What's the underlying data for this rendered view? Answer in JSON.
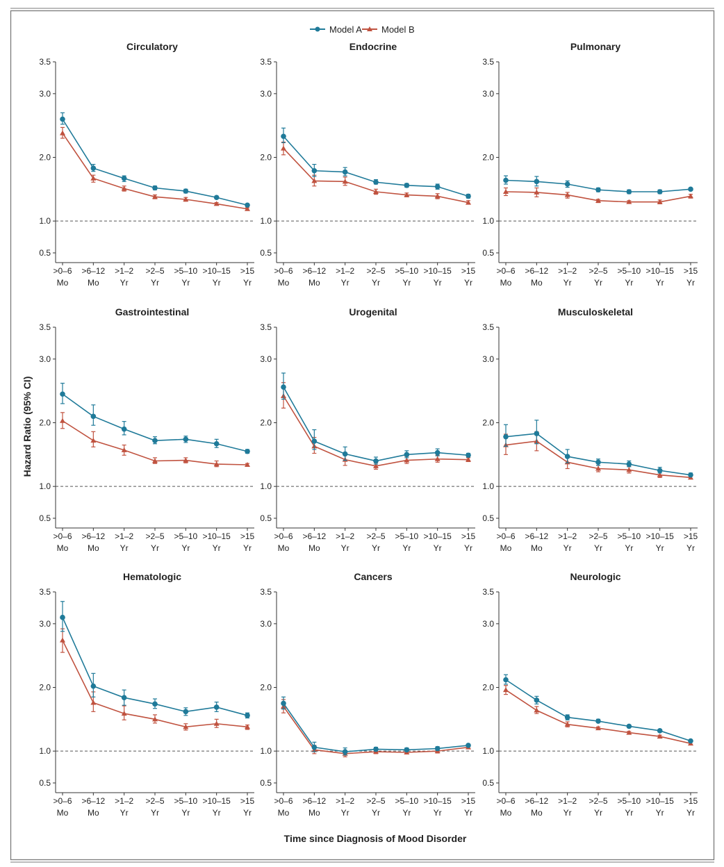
{
  "legend": [
    {
      "name": "Model A",
      "color": "#1f7a99",
      "marker": "circle"
    },
    {
      "name": "Model B",
      "color": "#c0523f",
      "marker": "triangle"
    }
  ],
  "xlabel": "Time since Diagnosis of Mood Disorder",
  "ylabel": "Hazard Ratio (95% CI)",
  "x_ticks": [
    [
      ">0–6",
      "Mo"
    ],
    [
      ">6–12",
      "Mo"
    ],
    [
      ">1–2",
      "Yr"
    ],
    [
      ">2–5",
      "Yr"
    ],
    [
      ">5–10",
      "Yr"
    ],
    [
      ">10–15",
      "Yr"
    ],
    [
      ">15",
      "Yr"
    ]
  ],
  "y_ticks": [
    "0.5",
    "1.0",
    "2.0",
    "3.0",
    "3.5"
  ],
  "chart_data": [
    {
      "type": "line",
      "title": "Circulatory",
      "ylim": [
        0.5,
        3.5
      ],
      "series": [
        {
          "name": "Model A",
          "values": [
            2.6,
            1.83,
            1.67,
            1.52,
            1.47,
            1.37,
            1.25
          ],
          "ci": [
            [
              2.52,
              2.7
            ],
            [
              1.78,
              1.89
            ],
            [
              1.62,
              1.71
            ],
            [
              1.49,
              1.55
            ],
            [
              1.44,
              1.5
            ],
            [
              1.35,
              1.39
            ],
            [
              1.23,
              1.27
            ]
          ]
        },
        {
          "name": "Model B",
          "values": [
            2.38,
            1.67,
            1.51,
            1.38,
            1.34,
            1.27,
            1.19
          ],
          "ci": [
            [
              2.3,
              2.47
            ],
            [
              1.61,
              1.72
            ],
            [
              1.47,
              1.55
            ],
            [
              1.35,
              1.41
            ],
            [
              1.31,
              1.37
            ],
            [
              1.25,
              1.29
            ],
            [
              1.17,
              1.21
            ]
          ]
        }
      ]
    },
    {
      "type": "line",
      "title": "Endocrine",
      "ylim": [
        0.5,
        3.5
      ],
      "series": [
        {
          "name": "Model A",
          "values": [
            2.33,
            1.79,
            1.77,
            1.61,
            1.56,
            1.54,
            1.39
          ],
          "ci": [
            [
              2.23,
              2.46
            ],
            [
              1.7,
              1.89
            ],
            [
              1.71,
              1.84
            ],
            [
              1.58,
              1.65
            ],
            [
              1.53,
              1.59
            ],
            [
              1.5,
              1.58
            ],
            [
              1.36,
              1.42
            ]
          ]
        },
        {
          "name": "Model B",
          "values": [
            2.14,
            1.63,
            1.62,
            1.46,
            1.41,
            1.39,
            1.29
          ],
          "ci": [
            [
              2.04,
              2.24
            ],
            [
              1.55,
              1.72
            ],
            [
              1.56,
              1.69
            ],
            [
              1.42,
              1.5
            ],
            [
              1.38,
              1.44
            ],
            [
              1.35,
              1.43
            ],
            [
              1.27,
              1.32
            ]
          ]
        }
      ]
    },
    {
      "type": "line",
      "title": "Pulmonary",
      "ylim": [
        0.5,
        3.5
      ],
      "series": [
        {
          "name": "Model A",
          "values": [
            1.64,
            1.62,
            1.58,
            1.49,
            1.46,
            1.46,
            1.5
          ],
          "ci": [
            [
              1.58,
              1.71
            ],
            [
              1.55,
              1.7
            ],
            [
              1.53,
              1.63
            ],
            [
              1.46,
              1.52
            ],
            [
              1.43,
              1.49
            ],
            [
              1.43,
              1.49
            ],
            [
              1.48,
              1.52
            ]
          ]
        },
        {
          "name": "Model B",
          "values": [
            1.46,
            1.45,
            1.41,
            1.32,
            1.3,
            1.3,
            1.39
          ],
          "ci": [
            [
              1.4,
              1.52
            ],
            [
              1.38,
              1.52
            ],
            [
              1.36,
              1.45
            ],
            [
              1.29,
              1.34
            ],
            [
              1.28,
              1.32
            ],
            [
              1.27,
              1.33
            ],
            [
              1.36,
              1.42
            ]
          ]
        }
      ]
    },
    {
      "type": "line",
      "title": "Gastrointestinal",
      "ylim": [
        0.5,
        3.5
      ],
      "series": [
        {
          "name": "Model A",
          "values": [
            2.45,
            2.1,
            1.9,
            1.72,
            1.74,
            1.67,
            1.55
          ],
          "ci": [
            [
              2.3,
              2.62
            ],
            [
              1.96,
              2.28
            ],
            [
              1.81,
              2.02
            ],
            [
              1.67,
              1.78
            ],
            [
              1.69,
              1.79
            ],
            [
              1.61,
              1.74
            ],
            [
              1.52,
              1.58
            ]
          ]
        },
        {
          "name": "Model B",
          "values": [
            2.03,
            1.72,
            1.57,
            1.4,
            1.41,
            1.35,
            1.34
          ],
          "ci": [
            [
              1.91,
              2.16
            ],
            [
              1.62,
              1.86
            ],
            [
              1.49,
              1.65
            ],
            [
              1.36,
              1.45
            ],
            [
              1.37,
              1.45
            ],
            [
              1.31,
              1.4
            ],
            [
              1.32,
              1.36
            ]
          ]
        }
      ]
    },
    {
      "type": "line",
      "title": "Urogenital",
      "ylim": [
        0.5,
        3.5
      ],
      "series": [
        {
          "name": "Model A",
          "values": [
            2.56,
            1.71,
            1.51,
            1.4,
            1.5,
            1.53,
            1.49
          ],
          "ci": [
            [
              2.37,
              2.78
            ],
            [
              1.58,
              1.89
            ],
            [
              1.41,
              1.62
            ],
            [
              1.35,
              1.46
            ],
            [
              1.45,
              1.56
            ],
            [
              1.48,
              1.59
            ],
            [
              1.46,
              1.52
            ]
          ]
        },
        {
          "name": "Model B",
          "values": [
            2.42,
            1.63,
            1.42,
            1.32,
            1.41,
            1.43,
            1.42
          ],
          "ci": [
            [
              2.23,
              2.63
            ],
            [
              1.52,
              1.77
            ],
            [
              1.33,
              1.52
            ],
            [
              1.27,
              1.37
            ],
            [
              1.36,
              1.47
            ],
            [
              1.38,
              1.49
            ],
            [
              1.39,
              1.45
            ]
          ]
        }
      ]
    },
    {
      "type": "line",
      "title": "Musculoskeletal",
      "ylim": [
        0.5,
        3.5
      ],
      "series": [
        {
          "name": "Model A",
          "values": [
            1.78,
            1.83,
            1.47,
            1.38,
            1.35,
            1.25,
            1.18
          ],
          "ci": [
            [
              1.63,
              1.97
            ],
            [
              1.67,
              2.04
            ],
            [
              1.37,
              1.58
            ],
            [
              1.33,
              1.43
            ],
            [
              1.31,
              1.4
            ],
            [
              1.21,
              1.3
            ],
            [
              1.16,
              1.21
            ]
          ]
        },
        {
          "name": "Model B",
          "values": [
            1.65,
            1.71,
            1.38,
            1.28,
            1.26,
            1.18,
            1.14
          ],
          "ci": [
            [
              1.5,
              1.82
            ],
            [
              1.56,
              1.86
            ],
            [
              1.28,
              1.49
            ],
            [
              1.23,
              1.33
            ],
            [
              1.21,
              1.31
            ],
            [
              1.14,
              1.23
            ],
            [
              1.12,
              1.17
            ]
          ]
        }
      ]
    },
    {
      "type": "line",
      "title": "Hematologic",
      "ylim": [
        0.5,
        3.5
      ],
      "series": [
        {
          "name": "Model A",
          "values": [
            3.1,
            2.02,
            1.84,
            1.74,
            1.62,
            1.69,
            1.56
          ],
          "ci": [
            [
              2.88,
              3.35
            ],
            [
              1.85,
              2.22
            ],
            [
              1.72,
              1.96
            ],
            [
              1.67,
              1.82
            ],
            [
              1.56,
              1.68
            ],
            [
              1.62,
              1.77
            ],
            [
              1.52,
              1.6
            ]
          ]
        },
        {
          "name": "Model B",
          "values": [
            2.74,
            1.76,
            1.59,
            1.5,
            1.38,
            1.43,
            1.38
          ],
          "ci": [
            [
              2.55,
              2.92
            ],
            [
              1.62,
              1.93
            ],
            [
              1.49,
              1.71
            ],
            [
              1.44,
              1.57
            ],
            [
              1.33,
              1.43
            ],
            [
              1.37,
              1.5
            ],
            [
              1.34,
              1.41
            ]
          ]
        }
      ]
    },
    {
      "type": "line",
      "title": "Cancers",
      "ylim": [
        0.5,
        3.5
      ],
      "series": [
        {
          "name": "Model A",
          "values": [
            1.75,
            1.06,
            0.99,
            1.03,
            1.02,
            1.04,
            1.09
          ],
          "ci": [
            [
              1.66,
              1.85
            ],
            [
              0.99,
              1.14
            ],
            [
              0.94,
              1.05
            ],
            [
              1.0,
              1.06
            ],
            [
              1.0,
              1.05
            ],
            [
              1.01,
              1.07
            ],
            [
              1.07,
              1.11
            ]
          ]
        },
        {
          "name": "Model B",
          "values": [
            1.7,
            1.02,
            0.96,
            0.99,
            0.98,
            1.0,
            1.06
          ],
          "ci": [
            [
              1.6,
              1.81
            ],
            [
              0.96,
              1.09
            ],
            [
              0.91,
              1.01
            ],
            [
              0.96,
              1.02
            ],
            [
              0.96,
              1.0
            ],
            [
              0.97,
              1.03
            ],
            [
              1.04,
              1.08
            ]
          ]
        }
      ]
    },
    {
      "type": "line",
      "title": "Neurologic",
      "ylim": [
        0.5,
        3.5
      ],
      "series": [
        {
          "name": "Model A",
          "values": [
            2.12,
            1.8,
            1.53,
            1.47,
            1.39,
            1.32,
            1.16
          ],
          "ci": [
            [
              2.05,
              2.2
            ],
            [
              1.74,
              1.86
            ],
            [
              1.49,
              1.57
            ],
            [
              1.45,
              1.5
            ],
            [
              1.37,
              1.41
            ],
            [
              1.3,
              1.34
            ],
            [
              1.15,
              1.18
            ]
          ]
        },
        {
          "name": "Model B",
          "values": [
            1.96,
            1.64,
            1.42,
            1.36,
            1.29,
            1.23,
            1.12
          ],
          "ci": [
            [
              1.89,
              2.03
            ],
            [
              1.59,
              1.7
            ],
            [
              1.38,
              1.46
            ],
            [
              1.34,
              1.38
            ],
            [
              1.27,
              1.31
            ],
            [
              1.21,
              1.25
            ],
            [
              1.1,
              1.13
            ]
          ]
        }
      ]
    }
  ]
}
